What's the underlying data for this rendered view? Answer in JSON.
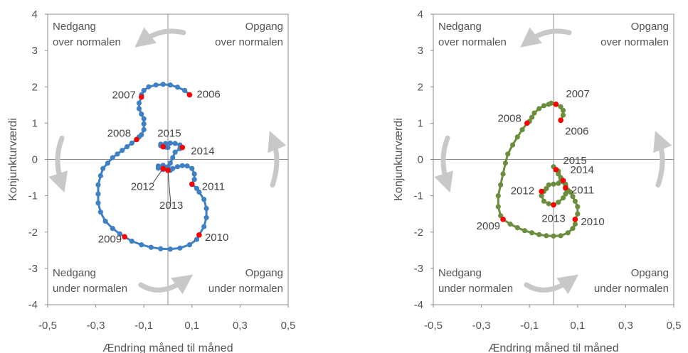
{
  "chart_data": [
    {
      "type": "scatter",
      "xlabel": "Ændring måned til måned",
      "ylabel": "Konjunkturværdi",
      "xlim": [
        -0.5,
        0.5
      ],
      "ylim": [
        -4,
        4
      ],
      "xticks": [
        "-0,5",
        "-0,3",
        "-0,1",
        "0,1",
        "0,3",
        "0,5"
      ],
      "yticks": [
        "4",
        "3",
        "2",
        "1",
        "0",
        "-1",
        "-2",
        "-3",
        "-4"
      ],
      "quadrants": {
        "top_left": [
          "Nedgang",
          "over normalen"
        ],
        "top_right": [
          "Opgang",
          "over normalen"
        ],
        "bottom_left": [
          "Nedgang",
          "under normalen"
        ],
        "bottom_right": [
          "Opgang",
          "under normalen"
        ]
      },
      "colors": {
        "series": "#3f7fc4",
        "year_marker": "#ff0000",
        "arrow": "#c8c8c8"
      },
      "path": [
        [
          0.09,
          1.78
        ],
        [
          0.07,
          1.9
        ],
        [
          0.04,
          1.99
        ],
        [
          0.01,
          2.05
        ],
        [
          -0.02,
          2.07
        ],
        [
          -0.05,
          2.05
        ],
        [
          -0.08,
          2.0
        ],
        [
          -0.1,
          1.9
        ],
        [
          -0.11,
          1.78
        ],
        [
          -0.11,
          1.72
        ],
        [
          -0.12,
          1.55
        ],
        [
          -0.12,
          1.4
        ],
        [
          -0.11,
          1.25
        ],
        [
          -0.1,
          1.12
        ],
        [
          -0.1,
          0.98
        ],
        [
          -0.1,
          0.82
        ],
        [
          -0.11,
          0.68
        ],
        [
          -0.12,
          0.62
        ],
        [
          -0.13,
          0.55
        ],
        [
          -0.15,
          0.45
        ],
        [
          -0.17,
          0.35
        ],
        [
          -0.19,
          0.25
        ],
        [
          -0.21,
          0.15
        ],
        [
          -0.23,
          0.05
        ],
        [
          -0.25,
          -0.1
        ],
        [
          -0.27,
          -0.25
        ],
        [
          -0.28,
          -0.45
        ],
        [
          -0.29,
          -0.7
        ],
        [
          -0.29,
          -0.95
        ],
        [
          -0.29,
          -1.2
        ],
        [
          -0.28,
          -1.45
        ],
        [
          -0.26,
          -1.7
        ],
        [
          -0.23,
          -1.9
        ],
        [
          -0.2,
          -2.05
        ],
        [
          -0.18,
          -2.13
        ],
        [
          -0.15,
          -2.25
        ],
        [
          -0.11,
          -2.35
        ],
        [
          -0.07,
          -2.42
        ],
        [
          -0.03,
          -2.46
        ],
        [
          0.01,
          -2.47
        ],
        [
          0.05,
          -2.44
        ],
        [
          0.09,
          -2.35
        ],
        [
          0.12,
          -2.2
        ],
        [
          0.13,
          -2.08
        ],
        [
          0.15,
          -1.85
        ],
        [
          0.16,
          -1.6
        ],
        [
          0.16,
          -1.35
        ],
        [
          0.15,
          -1.1
        ],
        [
          0.13,
          -0.9
        ],
        [
          0.12,
          -0.8
        ],
        [
          0.1,
          -0.68
        ],
        [
          0.11,
          -0.55
        ],
        [
          0.11,
          -0.4
        ],
        [
          0.1,
          -0.25
        ],
        [
          0.08,
          -0.18
        ],
        [
          0.06,
          -0.17
        ],
        [
          0.04,
          -0.2
        ],
        [
          0.02,
          -0.25
        ],
        [
          0.01,
          -0.3
        ],
        [
          0.0,
          -0.3
        ],
        [
          -0.02,
          -0.28
        ],
        [
          -0.04,
          -0.24
        ],
        [
          -0.04,
          -0.18
        ],
        [
          -0.02,
          -0.16
        ],
        [
          0.0,
          -0.2
        ],
        [
          -0.01,
          -0.25
        ],
        [
          0.0,
          -0.22
        ],
        [
          0.01,
          -0.1
        ],
        [
          0.02,
          0.05
        ],
        [
          0.03,
          0.2
        ],
        [
          0.05,
          0.3
        ],
        [
          0.06,
          0.33
        ],
        [
          0.05,
          0.4
        ],
        [
          0.03,
          0.44
        ],
        [
          0.01,
          0.45
        ],
        [
          -0.01,
          0.44
        ],
        [
          -0.03,
          0.42
        ],
        [
          -0.03,
          0.38
        ],
        [
          -0.01,
          0.34
        ],
        [
          0.0,
          0.33
        ]
      ],
      "years": [
        {
          "label": "2006",
          "x": 0.09,
          "y": 1.78
        },
        {
          "label": "2007",
          "x": -0.11,
          "y": 1.72
        },
        {
          "label": "2008",
          "x": -0.13,
          "y": 0.55
        },
        {
          "label": "2009",
          "x": -0.18,
          "y": -2.13
        },
        {
          "label": "2010",
          "x": 0.13,
          "y": -2.08
        },
        {
          "label": "2011",
          "x": 0.1,
          "y": -0.68
        },
        {
          "label": "2012",
          "x": -0.02,
          "y": -0.25
        },
        {
          "label": "2013",
          "x": 0.0,
          "y": -0.3
        },
        {
          "label": "2014",
          "x": 0.06,
          "y": 0.33
        },
        {
          "label": "2015",
          "x": -0.02,
          "y": 0.35
        }
      ]
    },
    {
      "type": "scatter",
      "xlabel": "Ændring måned til måned",
      "ylabel": "Konjunkturværdi",
      "xlim": [
        -0.5,
        0.5
      ],
      "ylim": [
        -4,
        4
      ],
      "xticks": [
        "-0,5",
        "-0,3",
        "-0,1",
        "0,1",
        "0,3",
        "0,5"
      ],
      "yticks": [
        "4",
        "3",
        "2",
        "1",
        "0",
        "-1",
        "-2",
        "-3",
        "-4"
      ],
      "quadrants": {
        "top_left": [
          "Nedgang",
          "over normalen"
        ],
        "top_right": [
          "Opgang",
          "over normalen"
        ],
        "bottom_left": [
          "Nedgang",
          "under normalen"
        ],
        "bottom_right": [
          "Opgang",
          "under normalen"
        ]
      },
      "colors": {
        "series": "#6b8e3e",
        "year_marker": "#ff0000",
        "arrow": "#c8c8c8"
      },
      "path": [
        [
          0.03,
          1.08
        ],
        [
          0.04,
          1.22
        ],
        [
          0.04,
          1.35
        ],
        [
          0.03,
          1.45
        ],
        [
          0.01,
          1.52
        ],
        [
          -0.01,
          1.55
        ],
        [
          0.01,
          1.52
        ],
        [
          -0.02,
          1.52
        ],
        [
          -0.04,
          1.48
        ],
        [
          -0.06,
          1.4
        ],
        [
          -0.08,
          1.28
        ],
        [
          -0.09,
          1.16
        ],
        [
          -0.1,
          1.05
        ],
        [
          -0.11,
          1.0
        ],
        [
          -0.13,
          0.82
        ],
        [
          -0.15,
          0.62
        ],
        [
          -0.17,
          0.4
        ],
        [
          -0.19,
          0.15
        ],
        [
          -0.2,
          -0.1
        ],
        [
          -0.21,
          -0.4
        ],
        [
          -0.22,
          -0.7
        ],
        [
          -0.23,
          -1.0
        ],
        [
          -0.23,
          -1.3
        ],
        [
          -0.22,
          -1.55
        ],
        [
          -0.21,
          -1.65
        ],
        [
          -0.18,
          -1.78
        ],
        [
          -0.15,
          -1.88
        ],
        [
          -0.12,
          -1.96
        ],
        [
          -0.09,
          -2.02
        ],
        [
          -0.06,
          -2.07
        ],
        [
          -0.03,
          -2.1
        ],
        [
          0.0,
          -2.11
        ],
        [
          0.03,
          -2.1
        ],
        [
          0.06,
          -2.02
        ],
        [
          0.08,
          -1.9
        ],
        [
          0.09,
          -1.78
        ],
        [
          0.09,
          -1.65
        ],
        [
          0.1,
          -1.5
        ],
        [
          0.1,
          -1.3
        ],
        [
          0.09,
          -1.15
        ],
        [
          0.08,
          -1.02
        ],
        [
          0.07,
          -0.9
        ],
        [
          0.06,
          -0.85
        ],
        [
          0.05,
          -0.72
        ],
        [
          0.04,
          -0.62
        ],
        [
          0.03,
          -0.6
        ],
        [
          0.02,
          -0.66
        ],
        [
          0.0,
          -0.68
        ],
        [
          -0.02,
          -0.7
        ],
        [
          -0.03,
          -0.8
        ],
        [
          -0.04,
          -0.88
        ],
        [
          -0.05,
          -1.0
        ],
        [
          -0.04,
          -1.15
        ],
        [
          -0.02,
          -1.22
        ],
        [
          0.0,
          -1.25
        ],
        [
          0.02,
          -1.18
        ],
        [
          0.04,
          -1.06
        ],
        [
          0.05,
          -0.95
        ],
        [
          0.05,
          -0.8
        ],
        [
          0.05,
          -0.68
        ],
        [
          0.04,
          -0.58
        ],
        [
          0.03,
          -0.5
        ],
        [
          0.02,
          -0.4
        ],
        [
          0.02,
          -0.32
        ],
        [
          0.01,
          -0.28
        ],
        [
          0.0,
          -0.2
        ]
      ],
      "years": [
        {
          "label": "2006",
          "x": 0.03,
          "y": 1.08
        },
        {
          "label": "2007",
          "x": 0.01,
          "y": 1.52
        },
        {
          "label": "2008",
          "x": -0.11,
          "y": 1.0
        },
        {
          "label": "2009",
          "x": -0.21,
          "y": -1.65
        },
        {
          "label": "2010",
          "x": 0.09,
          "y": -1.65
        },
        {
          "label": "2011",
          "x": 0.05,
          "y": -0.78
        },
        {
          "label": "2012",
          "x": -0.05,
          "y": -0.88
        },
        {
          "label": "2013",
          "x": 0.0,
          "y": -1.25
        },
        {
          "label": "2014",
          "x": 0.04,
          "y": -0.58
        },
        {
          "label": "2015",
          "x": 0.01,
          "y": -0.28
        }
      ]
    }
  ]
}
